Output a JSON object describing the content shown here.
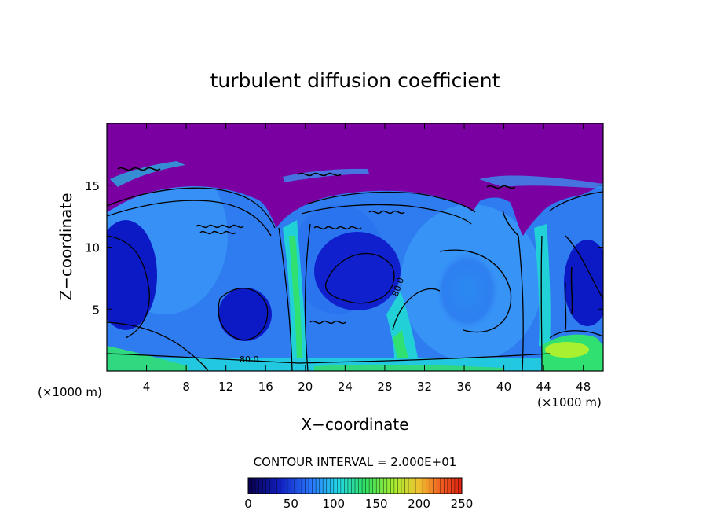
{
  "chart_data": {
    "type": "heatmap",
    "title": "turbulent diffusion coefficient",
    "xlabel": "X−coordinate",
    "ylabel": "Z−coordinate",
    "x_unit": "(×1000 m)",
    "z_unit": "(×1000 m)",
    "xlim": [
      0,
      50
    ],
    "ylim": [
      0,
      20
    ],
    "x_ticks": [
      4,
      8,
      12,
      16,
      20,
      24,
      28,
      32,
      36,
      40,
      44,
      48
    ],
    "y_ticks": [
      5,
      10,
      15
    ],
    "contour_interval_label": "CONTOUR INTERVAL = 2.000E+01",
    "contour_labels": [
      {
        "text": "80.0",
        "x": 30.2,
        "z": 6.0
      },
      {
        "text": "80.0",
        "x": 13.8,
        "z": 1.0
      }
    ],
    "colorbar": {
      "min": 0,
      "max": 250,
      "ticks": [
        0,
        50,
        100,
        150,
        200,
        250
      ]
    },
    "colors": {
      "top_region": "#7a00a2",
      "deep_blue": "#0b18d0",
      "mid_blue": "#2266ee",
      "light_blue": "#3aa0ff",
      "cyan": "#22dde8",
      "green": "#2fe06a",
      "yellow_green": "#a8f030"
    }
  }
}
